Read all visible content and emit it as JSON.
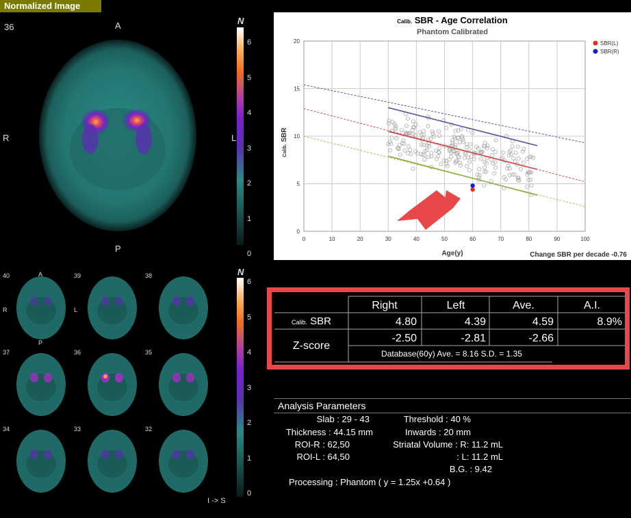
{
  "header": {
    "title": "Normalized Image"
  },
  "main_image": {
    "slice": "36",
    "orient_top": "A",
    "orient_bottom": "P",
    "orient_left": "R",
    "orient_right": "L",
    "scale_label": "N",
    "scale_ticks": [
      "6",
      "5",
      "4",
      "3",
      "2",
      "1",
      "0"
    ]
  },
  "thumb_grid": {
    "slices": [
      "40",
      "39",
      "38",
      "37",
      "36",
      "35",
      "34",
      "33",
      "32"
    ],
    "orient_top": "A",
    "orient_bottom": "P",
    "orient_left": "R",
    "orient_right": "L",
    "scale_label": "N",
    "scale_ticks": [
      "6",
      "5",
      "4",
      "3",
      "2",
      "1",
      "0"
    ],
    "direction": "I -> S"
  },
  "chart_data": {
    "type": "scatter",
    "title_prefix": "Calib.",
    "title": "SBR - Age Correlation",
    "subtitle": "Phantom Calibrated",
    "xlabel": "Age(y)",
    "ylabel_prefix": "Calib.",
    "ylabel": "SBR",
    "xlim": [
      0,
      100
    ],
    "ylim": [
      0,
      20
    ],
    "xticks": [
      0,
      10,
      20,
      30,
      40,
      50,
      60,
      70,
      80,
      90,
      100
    ],
    "yticks": [
      0,
      5,
      10,
      15,
      20
    ],
    "footer": "Change SBR per decade -0.76",
    "legend_position": "top-right",
    "series": [
      {
        "name": "SBR(L)",
        "color": "#e03020",
        "x": [
          60
        ],
        "y": [
          4.39
        ]
      },
      {
        "name": "SBR(R)",
        "color": "#1020d0",
        "x": [
          60
        ],
        "y": [
          4.8
        ]
      }
    ],
    "regression": {
      "mean": {
        "color": "#d04a4a",
        "x": [
          30,
          83
        ],
        "y": [
          10.5,
          6.5
        ]
      },
      "upper": {
        "color": "#6050a0",
        "x": [
          30,
          83
        ],
        "y": [
          13.0,
          9.0
        ]
      },
      "lower": {
        "color": "#8ab040",
        "x": [
          30,
          83
        ],
        "y": [
          7.9,
          3.8
        ]
      },
      "upper_dashed": {
        "x": [
          0,
          100
        ],
        "y": [
          15.4,
          9.3
        ]
      },
      "mean_dashed": {
        "x": [
          0,
          100
        ],
        "y": [
          12.9,
          5.2
        ]
      },
      "lower_dashed": {
        "x": [
          0,
          100
        ],
        "y": [
          10.0,
          2.6
        ]
      }
    },
    "accent_color": "#e8484a"
  },
  "results_table": {
    "headers": [
      "Right",
      "Left",
      "Ave.",
      "A.I."
    ],
    "sbr_prefix": "Calib.",
    "sbr_label": "SBR",
    "sbr_values": [
      "4.80",
      "4.39",
      "4.59",
      "8.9%"
    ],
    "z_label": "Z-score",
    "z_values": [
      "-2.50",
      "-2.81",
      "-2.66",
      ""
    ],
    "database_note": "Database(60y)  Ave. = 8.16  S.D. = 1.35"
  },
  "parameters": {
    "title": "Analysis Parameters",
    "slab": "Slab : 29 - 43",
    "thickness": "Thickness : 44.15 mm",
    "roi_r": "ROI-R : 62,50",
    "roi_l": "ROI-L : 64,50",
    "threshold": "Threshold : 40 %",
    "inwards": "Inwards : 20 mm",
    "striatal_r": "Striatal Volume : R: 11.2 mL",
    "striatal_l": ": L: 11.2 mL",
    "bg": "B.G. : 9.42",
    "processing": "Processing : Phantom ( y = 1.25x +0.64 )"
  }
}
